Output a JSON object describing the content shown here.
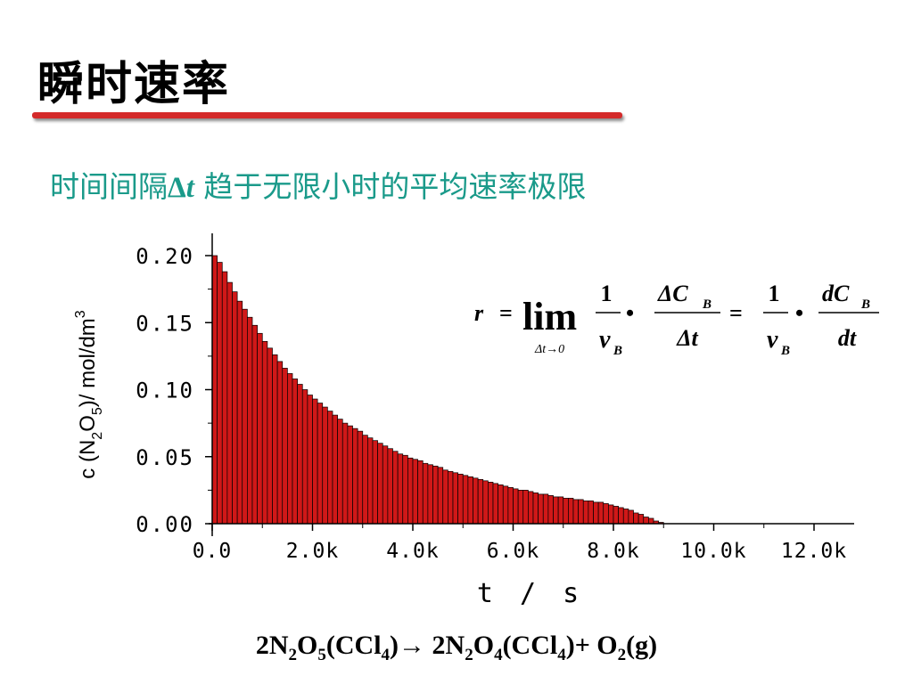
{
  "slide": {
    "title": "瞬时速率",
    "subtitle_before": "时间间隔",
    "subtitle_delta": "Δ",
    "subtitle_var": "t",
    "subtitle_after": " 趋于无限小时的平均速率极限"
  },
  "formula": {
    "r": "r",
    "eq": "=",
    "lim": "lim",
    "lim_sub": "Δt→0",
    "one": "1",
    "nu": "ν",
    "B": "B",
    "bullet": "•",
    "delta_C": "ΔC",
    "delta_t": "Δt",
    "dC": "dC",
    "dt": "dt"
  },
  "reaction": {
    "p1": "2N",
    "s1": "2",
    "p2": "O",
    "s2": "5",
    "p3": "(CCl",
    "s3": "4",
    "p4": ")",
    "arrow": "→",
    "p5": " 2N",
    "s5": "2",
    "p6": "O",
    "s6": "4",
    "p7": "(CCl",
    "s7": "4",
    "p8": ")+ O",
    "s8": "2",
    "p9": "(g)"
  },
  "colors": {
    "bar_fill": "#d01818",
    "bar_stroke": "#000000",
    "subtitle": "#1a9a8a",
    "rule": "#d42a2a"
  },
  "chart_data": {
    "type": "bar",
    "xlabel": "t / s",
    "ylabel": "c (N2O5)/ mol/dm3",
    "xlim": [
      0,
      12800
    ],
    "ylim": [
      0,
      0.2
    ],
    "xticks": [
      "0.0",
      "2.0k",
      "4.0k",
      "6.0k",
      "8.0k",
      "10.0k",
      "12.0k"
    ],
    "xtick_values": [
      0,
      2000,
      4000,
      6000,
      8000,
      10000,
      12000
    ],
    "yticks": [
      "0.00",
      "0.05",
      "0.10",
      "0.15",
      "0.20"
    ],
    "ytick_values": [
      0,
      0.05,
      0.1,
      0.15,
      0.2
    ],
    "bar_width": 100,
    "x": [
      0,
      100,
      200,
      300,
      400,
      500,
      600,
      700,
      800,
      900,
      1000,
      1100,
      1200,
      1300,
      1400,
      1500,
      1600,
      1700,
      1800,
      1900,
      2000,
      2100,
      2200,
      2300,
      2400,
      2500,
      2600,
      2700,
      2800,
      2900,
      3000,
      3100,
      3200,
      3300,
      3400,
      3500,
      3600,
      3700,
      3800,
      3900,
      4000,
      4100,
      4200,
      4300,
      4400,
      4500,
      4600,
      4700,
      4800,
      4900,
      5000,
      5100,
      5200,
      5300,
      5400,
      5500,
      5600,
      5700,
      5800,
      5900,
      6000,
      6100,
      6200,
      6300,
      6400,
      6500,
      6600,
      6700,
      6800,
      6900,
      7000,
      7100,
      7200,
      7300,
      7400,
      7500,
      7600,
      7700,
      7800,
      7900,
      8000,
      8100,
      8200,
      8300,
      8400,
      8500,
      8600,
      8700,
      8800,
      8900
    ],
    "values": [
      0.2,
      0.195,
      0.188,
      0.18,
      0.173,
      0.166,
      0.16,
      0.154,
      0.148,
      0.142,
      0.136,
      0.131,
      0.126,
      0.121,
      0.116,
      0.112,
      0.108,
      0.104,
      0.1,
      0.096,
      0.093,
      0.09,
      0.087,
      0.084,
      0.081,
      0.078,
      0.075,
      0.073,
      0.071,
      0.069,
      0.066,
      0.064,
      0.062,
      0.06,
      0.058,
      0.056,
      0.054,
      0.052,
      0.051,
      0.049,
      0.048,
      0.047,
      0.045,
      0.044,
      0.043,
      0.042,
      0.04,
      0.039,
      0.038,
      0.037,
      0.036,
      0.035,
      0.034,
      0.033,
      0.032,
      0.031,
      0.03,
      0.029,
      0.028,
      0.027,
      0.026,
      0.025,
      0.025,
      0.024,
      0.023,
      0.022,
      0.022,
      0.021,
      0.02,
      0.02,
      0.019,
      0.019,
      0.018,
      0.018,
      0.017,
      0.017,
      0.016,
      0.016,
      0.015,
      0.014,
      0.013,
      0.012,
      0.011,
      0.01,
      0.008,
      0.007,
      0.005,
      0.004,
      0.002,
      0.001
    ]
  }
}
